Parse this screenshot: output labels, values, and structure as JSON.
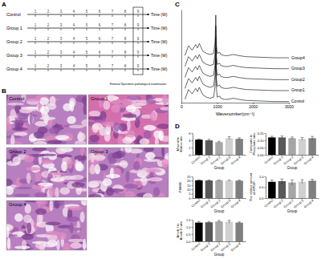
{
  "panel_labels": [
    "A",
    "B",
    "C",
    "D"
  ],
  "panels": {
    "A": {
      "rows": [
        "Control",
        "Group 1",
        "Group 2",
        "Group 3",
        "Group 4"
      ],
      "weeks": [
        1,
        2,
        3,
        4,
        5,
        6,
        7,
        8,
        9
      ],
      "axis_label": "Time (W)",
      "note": "Femoral Specimen pathological examination"
    },
    "B": {
      "images": [
        "Control",
        "Group 1",
        "Group 2",
        "Group 3",
        "Group 4"
      ]
    }
  },
  "chart_data": [
    {
      "type": "line",
      "x_label": "Wavenumber(cm⁻¹)",
      "x": [
        100,
        200,
        300,
        400,
        450,
        500,
        600,
        700,
        800,
        900,
        940,
        960,
        980,
        1000,
        1070,
        1100,
        1200,
        1300,
        1450,
        1600,
        1800,
        2200,
        2600,
        3000
      ],
      "series": [
        {
          "name": "Control",
          "color": "#000000",
          "values": [
            0.3,
            1.2,
            0.8,
            1.3,
            1.0,
            1.4,
            0.7,
            0.5,
            0.4,
            0.5,
            1.5,
            4.0,
            1.2,
            0.5,
            0.6,
            0.4,
            0.3,
            0.3,
            0.4,
            0.3,
            0.2,
            0.15,
            0.1,
            0.1
          ]
        },
        {
          "name": "Group1",
          "color": "#000000",
          "values": [
            1.3,
            2.2,
            1.8,
            2.3,
            2.0,
            2.4,
            1.7,
            1.5,
            1.4,
            1.5,
            2.5,
            5.0,
            2.2,
            1.5,
            1.6,
            1.4,
            1.3,
            1.3,
            1.4,
            1.3,
            1.2,
            1.15,
            1.1,
            1.1
          ]
        },
        {
          "name": "Group2",
          "color": "#000000",
          "values": [
            2.3,
            3.2,
            2.8,
            3.3,
            3.0,
            3.4,
            2.7,
            2.5,
            2.4,
            2.5,
            3.5,
            6.0,
            3.2,
            2.5,
            2.6,
            2.4,
            2.3,
            2.3,
            2.4,
            2.3,
            2.2,
            2.15,
            2.1,
            2.1
          ]
        },
        {
          "name": "Group3",
          "color": "#000000",
          "values": [
            3.3,
            4.2,
            3.8,
            4.3,
            4.0,
            4.4,
            3.7,
            3.5,
            3.4,
            3.5,
            4.5,
            7.0,
            4.2,
            3.5,
            3.6,
            3.4,
            3.3,
            3.3,
            3.4,
            3.3,
            3.2,
            3.15,
            3.1,
            3.1
          ]
        },
        {
          "name": "Group4",
          "color": "#000000",
          "values": [
            4.3,
            5.2,
            4.8,
            5.3,
            5.0,
            5.4,
            4.7,
            4.5,
            4.4,
            4.5,
            5.5,
            8.0,
            5.2,
            4.5,
            4.6,
            4.4,
            4.3,
            4.3,
            4.4,
            4.3,
            4.2,
            4.15,
            4.1,
            4.1
          ]
        }
      ],
      "xlim": [
        0,
        3000
      ],
      "xticks": [
        0,
        1000,
        2000,
        3000
      ],
      "ylim": [
        0,
        8.5
      ],
      "tick_labels": "x",
      "grid": false
    },
    {
      "type": "bar",
      "y_label": "Mineral to Matrix ratio",
      "x_label": "Group",
      "categories": [
        "Control",
        "Group 1",
        "Group 2",
        "Group 3",
        "Group 4"
      ],
      "values": [
        4.2,
        4.0,
        3.5,
        4.6,
        4.4
      ],
      "errors": [
        0.2,
        0.3,
        0.25,
        0.4,
        0.3
      ],
      "colors": [
        "#000000",
        "#595959",
        "#a6a6a6",
        "#d0d0d0",
        "#7f7f7f"
      ],
      "ylim": [
        0,
        6
      ],
      "yticks": [
        0,
        2,
        4,
        6
      ],
      "grid": false
    },
    {
      "type": "bar",
      "y_label": "Carbonate to Phosphate ratio",
      "x_label": "Group",
      "categories": [
        "Control",
        "Group 1",
        "Group 2",
        "Group 3",
        "Group 4"
      ],
      "values": [
        0.12,
        0.12,
        0.115,
        0.11,
        0.115
      ],
      "errors": [
        0.008,
        0.01,
        0.008,
        0.01,
        0.012
      ],
      "colors": [
        "#000000",
        "#595959",
        "#a6a6a6",
        "#d0d0d0",
        "#7f7f7f"
      ],
      "ylim": [
        0,
        0.15
      ],
      "yticks": [
        {
          "value": 0,
          "label": "0.00"
        },
        0.05,
        {
          "value": 0.1,
          "label": "0.10"
        },
        0.15
      ],
      "grid": false
    },
    {
      "type": "bar",
      "y_label": "FWHM",
      "x_label": "Group",
      "categories": [
        "Control",
        "Group 1",
        "Group 2",
        "Group 3",
        "Group 4"
      ],
      "values": [
        20.5,
        20.3,
        20.4,
        20.2,
        20.1
      ],
      "errors": [
        0.5,
        0.6,
        0.4,
        0.5,
        0.6
      ],
      "colors": [
        "#000000",
        "#595959",
        "#a6a6a6",
        "#d0d0d0",
        "#7f7f7f"
      ],
      "ylim": [
        0,
        25
      ],
      "yticks": [
        0,
        5,
        10,
        15,
        20,
        25
      ],
      "grid": false
    },
    {
      "type": "bar",
      "y_label": "The relative amount of HPO4²⁻",
      "x_label": "Group",
      "categories": [
        "Control",
        "Group 1",
        "Group 2",
        "Group 3",
        "Group 4"
      ],
      "values": [
        0.75,
        0.78,
        0.72,
        0.76,
        0.8
      ],
      "errors": [
        0.08,
        0.1,
        0.12,
        0.09,
        0.07
      ],
      "colors": [
        "#000000",
        "#595959",
        "#a6a6a6",
        "#d0d0d0",
        "#7f7f7f"
      ],
      "ylim": [
        0,
        1
      ],
      "yticks": [
        {
          "value": 0,
          "label": "0.0"
        },
        0.5,
        {
          "value": 1,
          "label": "1.0"
        }
      ],
      "grid": false
    },
    {
      "type": "bar",
      "y_label": "Amide I to Amide II ratio",
      "x_label": "Group",
      "categories": [
        "Control",
        "Group 1",
        "Group 2",
        "Group 3",
        "Group 4"
      ],
      "values": [
        1.3,
        1.32,
        1.38,
        1.36,
        1.3
      ],
      "errors": [
        0.08,
        0.06,
        0.07,
        0.1,
        0.05
      ],
      "colors": [
        "#000000",
        "#595959",
        "#a6a6a6",
        "#d0d0d0",
        "#7f7f7f"
      ],
      "ylim": [
        0,
        1.5
      ],
      "yticks": [
        {
          "value": 0,
          "label": "0.0"
        },
        0.5,
        {
          "value": 1,
          "label": "1.0"
        },
        1.5
      ],
      "grid": false
    }
  ]
}
